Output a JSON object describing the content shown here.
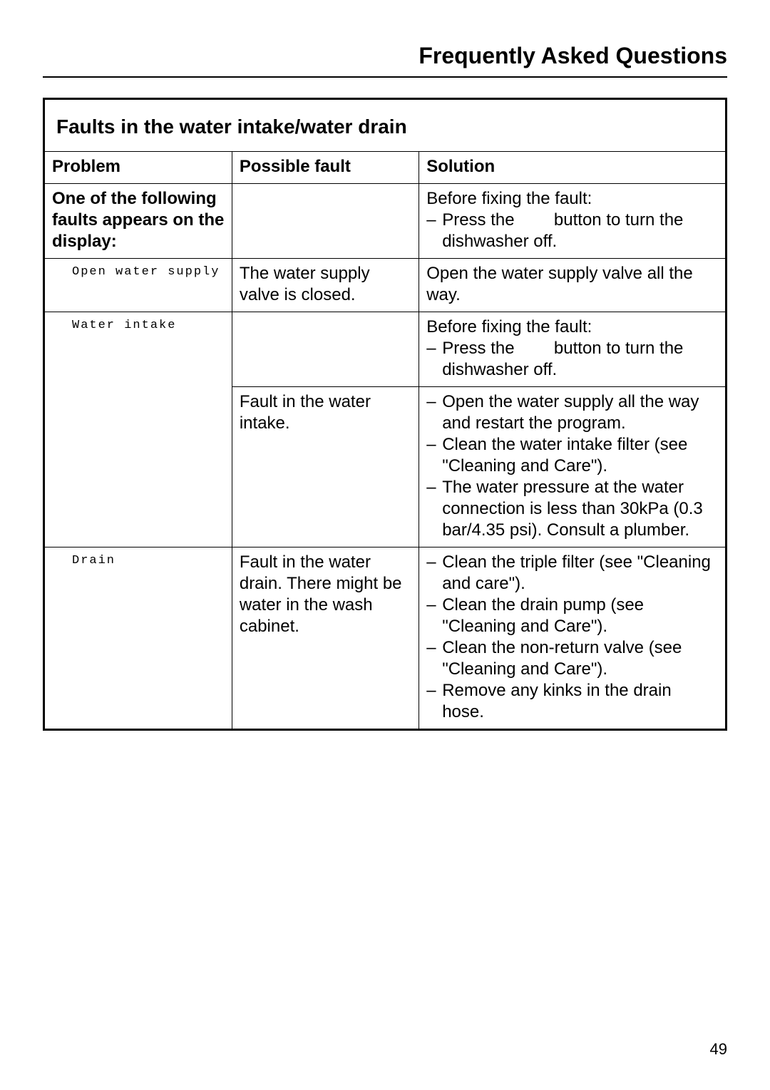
{
  "page": {
    "title": "Frequently Asked Questions",
    "number": "49"
  },
  "section": {
    "title": "Faults in the water intake/water drain"
  },
  "headers": {
    "problem": "Problem",
    "fault": "Possible fault",
    "solution": "Solution"
  },
  "rows": {
    "r0": {
      "problem": "One of the following faults appears on the display:",
      "fault": "",
      "solution_intro": "Before fixing the fault:",
      "solution_item_pre": "Press the",
      "solution_item_post": "button to turn the dishwasher off."
    },
    "r1": {
      "problem_display": "Open water supply",
      "fault": "The water supply valve is closed.",
      "solution": "Open the water supply valve all the way."
    },
    "r2": {
      "problem_display": "Water intake",
      "fault": "",
      "solution_intro": "Before fixing the fault:",
      "solution_item_pre": "Press the",
      "solution_item_post": "button to turn the dishwasher off."
    },
    "r3": {
      "problem_display": "",
      "fault": "Fault in the water intake.",
      "solution_items": {
        "i0": "Open the water supply all the way and restart the program.",
        "i1": "Clean the water intake filter (see \"Cleaning and Care\").",
        "i2": "The water pressure at the water connection is less than 30kPa (0.3 bar/4.35 psi). Consult a plumber."
      }
    },
    "r4": {
      "problem_display": "Drain",
      "fault": "Fault in the water drain. There might be water in the wash cabinet.",
      "solution_items": {
        "i0": "Clean the triple filter (see \"Cleaning and care\").",
        "i1": "Clean the drain pump (see \"Cleaning and Care\").",
        "i2": "Clean the non-return valve (see \"Cleaning and Care\").",
        "i3": "Remove any kinks in the drain hose."
      }
    }
  }
}
